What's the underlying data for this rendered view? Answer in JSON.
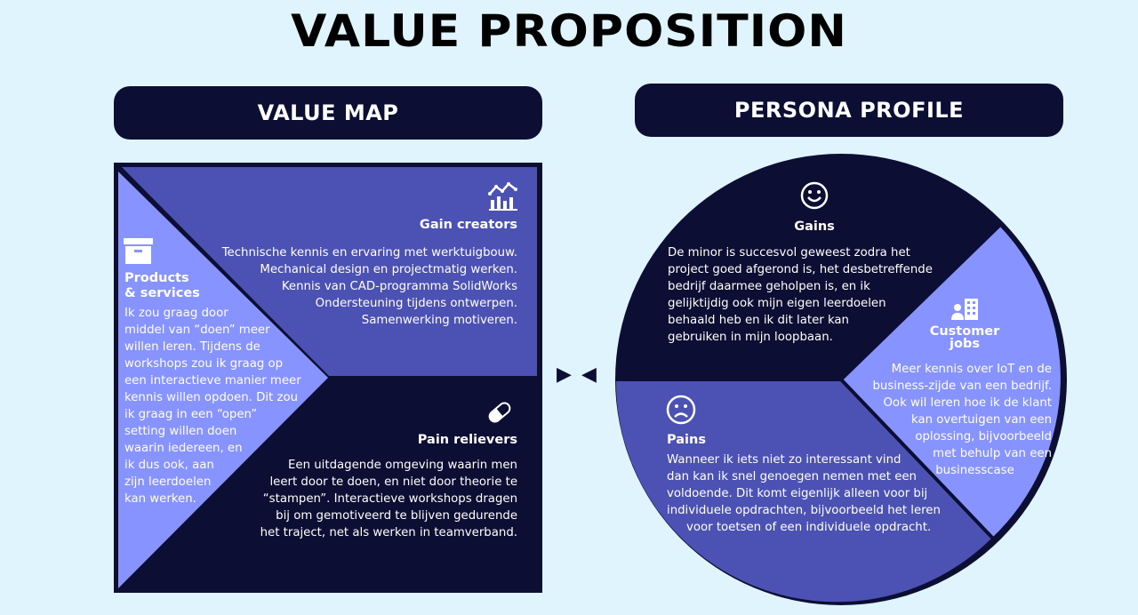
{
  "title": "VALUE PROPOSITION",
  "value_map": {
    "label": "VALUE MAP",
    "gain_creators": {
      "heading": "Gain creators",
      "icon": "bar-chart-trend-icon",
      "lines": [
        "Technische kennis en ervaring met werktuigbouw.",
        "Mechanical design en projectmatig werken.",
        "Kennis van CAD-programma SolidWorks",
        "Ondersteuning tijdens ontwerpen.",
        "Samenwerking motiveren."
      ]
    },
    "products_services": {
      "heading_line1": "Products",
      "heading_line2": "& services",
      "icon": "box-icon",
      "lines": [
        "Ik zou graag door",
        "middel van “doen” meer",
        "willen leren. Tijdens de",
        "workshops zou ik graag op",
        "een interactieve manier meer",
        "kennis willen opdoen. Dit zou",
        "ik graag in een “open”",
        "setting willen doen",
        "waarin iedereen, en",
        "ik dus ook, aan",
        "zijn leerdoelen",
        "kan werken."
      ]
    },
    "pain_relievers": {
      "heading": "Pain relievers",
      "icon": "pill-icon",
      "lines": [
        "Een uitdagende omgeving waarin men",
        "leert door te doen, en niet door theorie te",
        "“stampen”. Interactieve workshops dragen",
        "bij om gemotiveerd te blijven gedurende",
        "het traject, net als werken in teamverband."
      ]
    }
  },
  "persona_profile": {
    "label": "PERSONA PROFILE",
    "gains": {
      "heading": "Gains",
      "icon": "smiley-icon",
      "lines": [
        "De minor is succesvol geweest zodra het",
        "project goed afgerond is, het desbetreffende",
        "bedrijf daarmee geholpen is, en ik",
        "gelijktijdig ook mijn eigen leerdoelen",
        "behaald heb en ik dit later kan",
        "gebruiken in mijn loopbaan."
      ]
    },
    "customer_jobs": {
      "heading_line1": "Customer",
      "heading_line2": "jobs",
      "icon": "person-building-icon",
      "lines": [
        "Meer kennis over IoT en de",
        "business-zijde van een bedrijf.",
        "Ook wil leren hoe ik de klant",
        "kan overtuigen van een",
        "oplossing, bijvoorbeeld",
        "met behulp van een",
        "businesscase"
      ]
    },
    "pains": {
      "heading": "Pains",
      "icon": "sad-face-icon",
      "lines": [
        "Wanneer ik iets niet zo interessant vind",
        "dan kan ik snel genoegen nemen met een",
        "voldoende. Dit komt eigenlijk alleen voor bij",
        "individuele opdrachten, bijvoorbeeld het leren",
        "voor toetsen of een individuele opdracht."
      ]
    }
  },
  "colors": {
    "background": "#dff4fd",
    "navy": "#0c0f33",
    "mid_blue": "#4b52b3",
    "light_blue": "#8793ff"
  }
}
